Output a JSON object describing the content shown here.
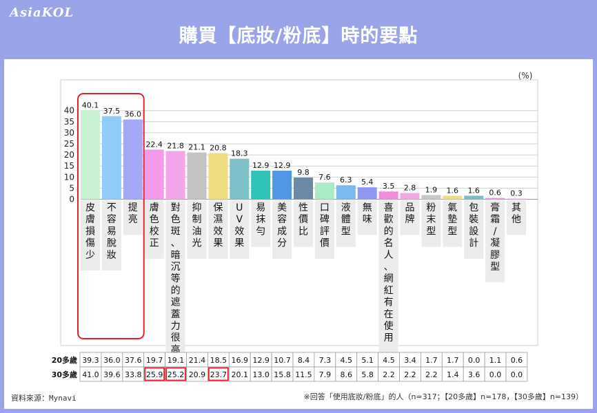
{
  "header": {
    "logo": "AsiaKOL",
    "title": "購買【底妝/粉底】時的要點"
  },
  "chart_data": {
    "type": "bar",
    "unit": "(%)",
    "ylim": [
      0,
      45
    ],
    "yticks": [
      0,
      5,
      10,
      15,
      20,
      25,
      30,
      35,
      40
    ],
    "categories": [
      "皮膚損傷少",
      "不容易脫妝",
      "提亮",
      "膚色校正",
      "對色斑、暗沉等的遮蓋力很高",
      "抑制油光",
      "保濕效果",
      "UV效果",
      "易抹勻",
      "美容成分",
      "性價比",
      "口碑評價",
      "液體型",
      "無味",
      "喜歡的名人、網紅有在使用",
      "品牌",
      "粉末型",
      "氣墊型",
      "包裝設計",
      "膏霜/凝膠型",
      "其他"
    ],
    "values": [
      40.1,
      37.5,
      36.0,
      22.4,
      21.8,
      21.1,
      20.8,
      18.3,
      12.9,
      12.9,
      9.8,
      7.6,
      6.3,
      5.4,
      3.5,
      2.8,
      1.9,
      1.6,
      1.6,
      0.6,
      0.3
    ],
    "colors": [
      "#c6f2cf",
      "#8fcdf7",
      "#a2a9f4",
      "#f49ae8",
      "#f4a6ec",
      "#c3c3c3",
      "#f0dc80",
      "#7ec0c8",
      "#2ec2b8",
      "#4f97e4",
      "#6c8aa6",
      "#a9ebc4",
      "#79b9f0",
      "#8e98f2",
      "#ef8ddd",
      "#f3a8e6",
      "#c7c7c7",
      "#f2dd86",
      "#7dbcc6",
      "#e599e4",
      "#f1a6e8"
    ],
    "highlight_categories": [
      0,
      1,
      2
    ],
    "table": {
      "rows": [
        {
          "label": "20多歲",
          "values": [
            "39.3",
            "36.0",
            "37.6",
            "19.7",
            "19.1",
            "21.4",
            "18.5",
            "16.9",
            "12.9",
            "10.7",
            "8.4",
            "7.3",
            "4.5",
            "5.1",
            "4.5",
            "3.4",
            "1.7",
            "1.7",
            "0.0",
            "1.1",
            "0.6"
          ],
          "highlights": []
        },
        {
          "label": "30多歲",
          "values": [
            "41.0",
            "39.6",
            "33.8",
            "25.9",
            "25.2",
            "20.9",
            "23.7",
            "20.1",
            "13.0",
            "15.8",
            "11.5",
            "7.9",
            "8.6",
            "5.8",
            "2.2",
            "2.2",
            "2.2",
            "1.4",
            "3.6",
            "0.0",
            "0.0"
          ],
          "highlights": [
            3,
            4,
            6
          ]
        }
      ]
    }
  },
  "footer": {
    "source": "資料來源：Mynavi",
    "note": "※回答「使用底妝/粉底」的人（n=317；【20多歲】n=178，【30多歲】n=139）"
  },
  "colors": {
    "background": "#9aa4e8",
    "highlight": "#e0202a",
    "gridline": "#cfcfcf"
  }
}
